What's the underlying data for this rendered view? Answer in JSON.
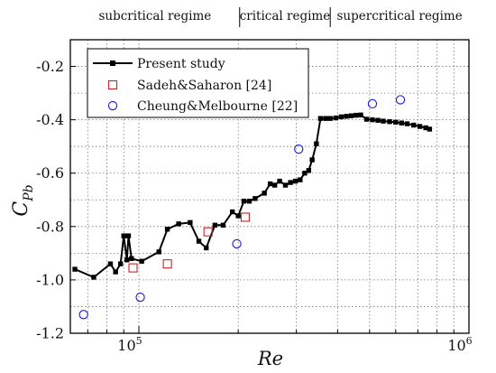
{
  "chart_data": {
    "type": "line",
    "xscale": "log",
    "xlim": [
      62000,
      1000000
    ],
    "ylim": [
      -1.2,
      -0.1
    ],
    "grid": true,
    "x_ticks": [
      {
        "value": 100000,
        "base": "10",
        "exp": "5"
      },
      {
        "value": 1000000,
        "base": "10",
        "exp": "6"
      }
    ],
    "y_ticks": [
      "-1.2",
      "-1.0",
      "-0.8",
      "-0.6",
      "-0.4",
      "-0.2"
    ],
    "y_tick_values": [
      -1.2,
      -1.0,
      -0.8,
      -0.6,
      -0.4,
      -0.2
    ],
    "xlabel": "Re",
    "ylabel": {
      "base": "C",
      "sub": "Pb"
    },
    "regimes": [
      {
        "label": "subcritical regime",
        "from": 62000,
        "to": 202000
      },
      {
        "label": "critical regime",
        "from": 202000,
        "to": 380000
      },
      {
        "label": "supercritical regime",
        "from": 380000,
        "to": 1000000
      }
    ],
    "legend_position": "top-left",
    "series": [
      {
        "name": "Present study",
        "style": "line-square",
        "color": "#000000",
        "x": [
          64000,
          73000,
          82000,
          85000,
          88000,
          90000,
          92000,
          93000,
          95000,
          102000,
          115000,
          122000,
          132000,
          143000,
          152000,
          160000,
          170000,
          180000,
          192000,
          200000,
          208000,
          216000,
          225000,
          240000,
          250000,
          258000,
          267000,
          278000,
          288000,
          298000,
          308000,
          318000,
          327000,
          335000,
          345000,
          355000,
          368000,
          380000,
          395000,
          410000,
          425000,
          440000,
          455000,
          470000,
          490000,
          510000,
          530000,
          550000,
          575000,
          600000,
          625000,
          650000,
          680000,
          710000,
          740000,
          760000
        ],
        "y": [
          -0.96,
          -0.99,
          -0.94,
          -0.97,
          -0.94,
          -0.835,
          -0.925,
          -0.835,
          -0.92,
          -0.93,
          -0.895,
          -0.81,
          -0.79,
          -0.785,
          -0.855,
          -0.88,
          -0.795,
          -0.795,
          -0.745,
          -0.76,
          -0.705,
          -0.705,
          -0.695,
          -0.675,
          -0.64,
          -0.645,
          -0.63,
          -0.645,
          -0.635,
          -0.63,
          -0.625,
          -0.6,
          -0.59,
          -0.55,
          -0.49,
          -0.395,
          -0.395,
          -0.395,
          -0.393,
          -0.389,
          -0.387,
          -0.385,
          -0.383,
          -0.382,
          -0.398,
          -0.4,
          -0.402,
          -0.405,
          -0.407,
          -0.409,
          -0.412,
          -0.415,
          -0.42,
          -0.425,
          -0.43,
          -0.435
        ]
      },
      {
        "name": "Sadeh&Saharon [24]",
        "style": "open-square",
        "color": "#cc2222",
        "x": [
          96000,
          122000,
          162000,
          210000
        ],
        "y": [
          -0.955,
          -0.94,
          -0.82,
          -0.765
        ]
      },
      {
        "name": "Cheung&Melbourne [22]",
        "style": "open-circle",
        "color": "#1a1acc",
        "x": [
          68000,
          101000,
          198000,
          305000,
          510000,
          620000
        ],
        "y": [
          -1.13,
          -1.065,
          -0.865,
          -0.51,
          -0.34,
          -0.325
        ]
      }
    ]
  }
}
